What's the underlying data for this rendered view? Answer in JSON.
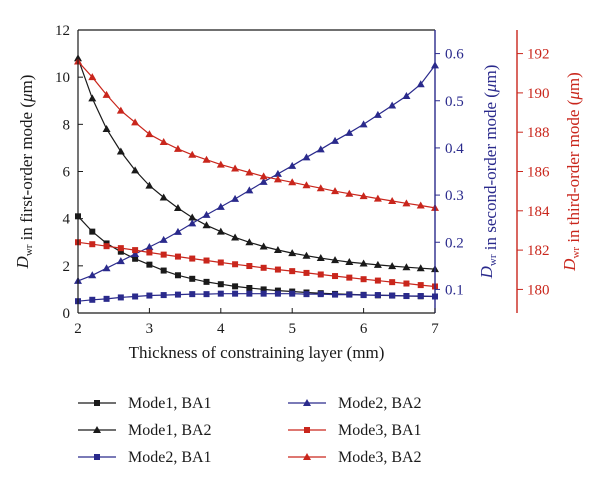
{
  "chart_data": {
    "type": "line",
    "xlabel": "Thickness of constraining layer (mm)",
    "xlim": [
      2,
      7
    ],
    "xticks": [
      2,
      3,
      4,
      5,
      6,
      7
    ],
    "axes": {
      "y1": {
        "label_main": "D",
        "label_sub": "wr",
        "label_rest": " in first-order mode (",
        "label_unit": "μ",
        "label_end": "m)",
        "lim": [
          0,
          12
        ],
        "ticks": [
          0,
          2,
          4,
          6,
          8,
          10,
          12
        ],
        "color": "#1a1a1a"
      },
      "y2": {
        "label_main": "D",
        "label_sub": "wr",
        "label_rest": " in second-order mode (",
        "label_unit": "μ",
        "label_end": "m)",
        "lim": [
          0.05,
          0.65
        ],
        "ticks": [
          0.1,
          0.2,
          0.3,
          0.4,
          0.5,
          0.6
        ],
        "color": "#2a2a8c"
      },
      "y3": {
        "label_main": "D",
        "label_sub": "wr",
        "label_rest": " in third-order mode (",
        "label_unit": "μ",
        "label_end": "m)",
        "lim": [
          178.8,
          193.2
        ],
        "ticks": [
          180,
          182,
          184,
          186,
          188,
          190,
          192
        ],
        "color": "#c9261c"
      }
    },
    "x": [
      2.0,
      2.2,
      2.4,
      2.6,
      2.8,
      3.0,
      3.2,
      3.4,
      3.6,
      3.8,
      4.0,
      4.2,
      4.4,
      4.6,
      4.8,
      5.0,
      5.2,
      5.4,
      5.6,
      5.8,
      6.0,
      6.2,
      6.4,
      6.6,
      6.8,
      7.0
    ],
    "series": [
      {
        "name": "Mode1, BA1",
        "axis": "y1",
        "marker": "square",
        "color": "#1a1a1a",
        "values": [
          4.1,
          3.45,
          2.95,
          2.6,
          2.3,
          2.05,
          1.8,
          1.6,
          1.45,
          1.32,
          1.22,
          1.13,
          1.06,
          1.0,
          0.95,
          0.91,
          0.87,
          0.84,
          0.81,
          0.79,
          0.77,
          0.75,
          0.74,
          0.72,
          0.71,
          0.7
        ]
      },
      {
        "name": "Mode1, BA2",
        "axis": "y1",
        "marker": "triangle",
        "color": "#1a1a1a",
        "values": [
          10.8,
          9.1,
          7.8,
          6.85,
          6.05,
          5.4,
          4.9,
          4.45,
          4.05,
          3.72,
          3.45,
          3.2,
          3.0,
          2.82,
          2.67,
          2.54,
          2.43,
          2.33,
          2.24,
          2.16,
          2.1,
          2.04,
          1.99,
          1.94,
          1.9,
          1.86
        ]
      },
      {
        "name": "Mode2, BA1",
        "axis": "y2",
        "marker": "square",
        "color": "#2a2a8c",
        "values": [
          0.075,
          0.078,
          0.08,
          0.083,
          0.085,
          0.087,
          0.088,
          0.089,
          0.09,
          0.09,
          0.091,
          0.091,
          0.091,
          0.091,
          0.091,
          0.091,
          0.09,
          0.09,
          0.089,
          0.089,
          0.088,
          0.088,
          0.087,
          0.086,
          0.086,
          0.085
        ]
      },
      {
        "name": "Mode2, BA2",
        "axis": "y2",
        "marker": "triangle",
        "color": "#2a2a8c",
        "values": [
          0.118,
          0.13,
          0.145,
          0.16,
          0.175,
          0.19,
          0.205,
          0.222,
          0.24,
          0.258,
          0.275,
          0.292,
          0.31,
          0.328,
          0.345,
          0.362,
          0.38,
          0.397,
          0.415,
          0.432,
          0.45,
          0.47,
          0.49,
          0.51,
          0.535,
          0.575
        ]
      },
      {
        "name": "Mode3, BA1",
        "axis": "y3",
        "marker": "square",
        "color": "#c9261c",
        "values": [
          182.4,
          182.3,
          182.2,
          182.1,
          182.0,
          181.88,
          181.77,
          181.67,
          181.57,
          181.47,
          181.37,
          181.28,
          181.19,
          181.1,
          181.01,
          180.93,
          180.84,
          180.76,
          180.68,
          180.6,
          180.52,
          180.45,
          180.37,
          180.3,
          180.22,
          180.15
        ]
      },
      {
        "name": "Mode3, BA2",
        "axis": "y3",
        "marker": "triangle",
        "color": "#c9261c",
        "values": [
          191.6,
          190.8,
          189.9,
          189.1,
          188.5,
          187.9,
          187.5,
          187.15,
          186.85,
          186.6,
          186.35,
          186.15,
          185.95,
          185.75,
          185.6,
          185.45,
          185.3,
          185.15,
          185.0,
          184.87,
          184.75,
          184.62,
          184.5,
          184.38,
          184.27,
          184.15
        ]
      }
    ],
    "legend_position": "bottom",
    "grid": false
  }
}
